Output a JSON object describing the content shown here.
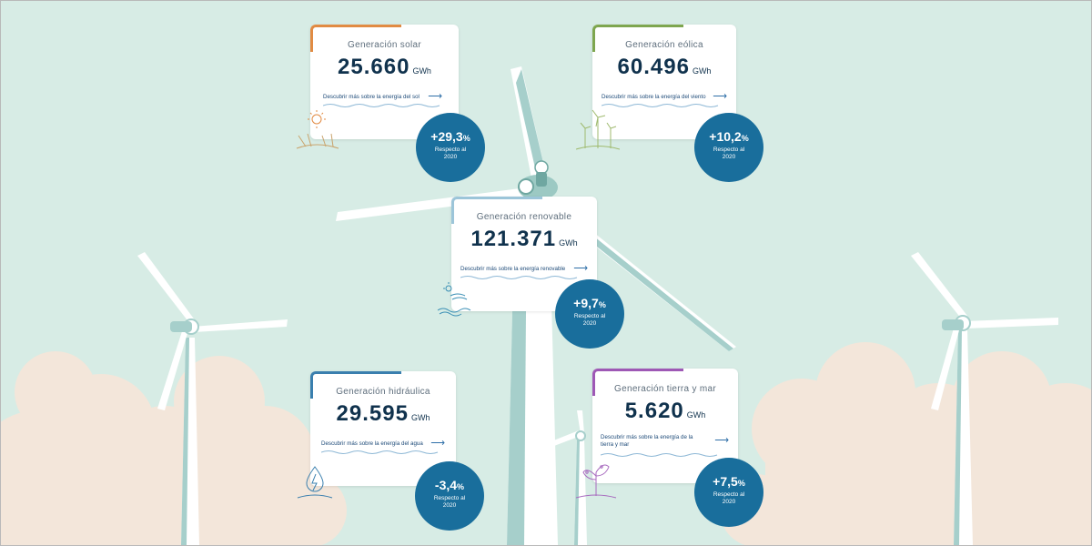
{
  "colors": {
    "background": "#d7ece5",
    "badge": "#196e9c",
    "solar": "#e18b43",
    "eolica": "#7ea64f",
    "renovable": "#9cc5d9",
    "hidraulica": "#3a7fae",
    "tierra_mar": "#9e58b5"
  },
  "cards": {
    "solar": {
      "title": "Generación solar",
      "value": "25.660",
      "unit": "GWh",
      "link": "Descubrir más sobre la energía del sol",
      "arrow": "⟶",
      "change": "+29,3",
      "pct": "%",
      "note": "Respecto al 2020",
      "icon": "sun-icon"
    },
    "eolica": {
      "title": "Generación eólica",
      "value": "60.496",
      "unit": "GWh",
      "link": "Descubrir más sobre la energía del viento",
      "arrow": "⟶",
      "change": "+10,2",
      "pct": "%",
      "note": "Respecto al 2020",
      "icon": "wind-turbine-icon"
    },
    "renovable": {
      "title": "Generación renovable",
      "value": "121.371",
      "unit": "GWh",
      "link": "Descubrir más sobre la energía renovable",
      "arrow": "⟶",
      "change": "+9,7",
      "pct": "%",
      "note": "Respecto al 2020",
      "icon": "renewable-icon"
    },
    "hidraulica": {
      "title": "Generación hidráulica",
      "value": "29.595",
      "unit": "GWh",
      "link": "Descubrir más sobre la energía del agua",
      "arrow": "⟶",
      "change": "-3,4",
      "pct": "%",
      "note": "Respecto al 2020",
      "icon": "water-drop-icon"
    },
    "tierra_mar": {
      "title": "Generación tierra y mar",
      "value": "5.620",
      "unit": "GWh",
      "link": "Descubrir más sobre la energía de la tierra y mar",
      "arrow": "⟶",
      "change": "+7,5",
      "pct": "%",
      "note": "Respecto al 2020",
      "icon": "plant-icon"
    }
  }
}
